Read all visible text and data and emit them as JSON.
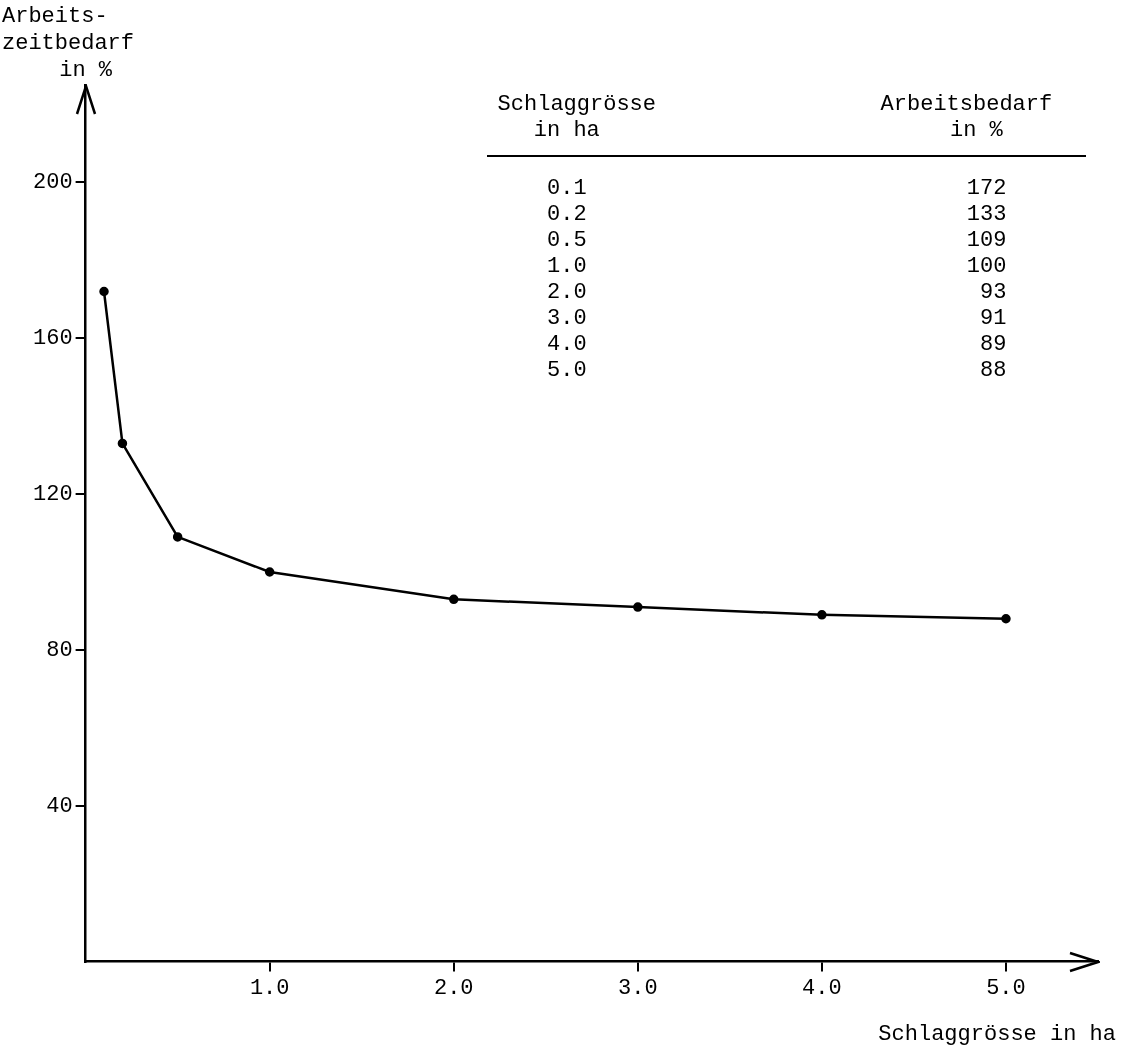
{
  "chart_data": {
    "type": "line",
    "ylabel": "Arbeits-\nzeitbedarf\nin %",
    "xlabel": "Schlaggrösse in ha",
    "x": [
      0.1,
      0.2,
      0.5,
      1.0,
      2.0,
      3.0,
      4.0,
      5.0
    ],
    "series": [
      {
        "color": "#000000",
        "values": [
          172,
          133,
          109,
          100,
          93,
          91,
          89,
          88
        ]
      }
    ],
    "xlim": [
      0,
      5.5
    ],
    "xticks": [
      {
        "value": 1,
        "label": "1.0"
      },
      {
        "value": 2,
        "label": "2.0"
      },
      {
        "value": 3,
        "label": "3.0"
      },
      {
        "value": 4,
        "label": "4.0"
      },
      {
        "value": 5,
        "label": "5.0"
      }
    ],
    "ylim": [
      0,
      225
    ],
    "yticks": [
      40,
      80,
      120,
      160,
      200
    ],
    "annotations": [
      "Schlaggrösse\nin ha",
      "Arbeitsbedarf\nin %",
      "0.1",
      "172",
      "0.2",
      "133",
      "0.5",
      "109",
      "1.0",
      "100",
      "2.0",
      "93",
      "3.0",
      "91",
      "4.0",
      "89",
      "5.0",
      "88"
    ],
    "grid": false,
    "legend": false,
    "marker": "circle",
    "line_style": "solid"
  }
}
